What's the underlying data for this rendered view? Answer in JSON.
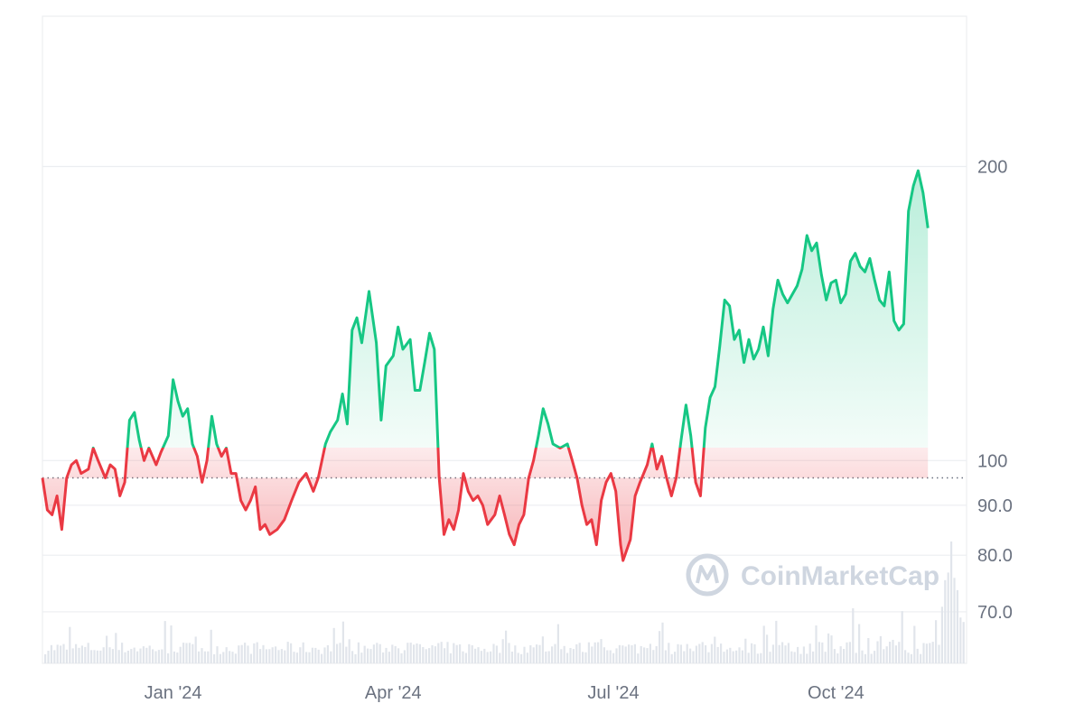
{
  "chart_data": {
    "type": "line",
    "watermark": "CoinMarketCap",
    "y_scale": "log",
    "baseline": 96,
    "ylim": [
      62,
      285
    ],
    "y_ticks": [
      {
        "value": 200,
        "label": "200"
      },
      {
        "value": 100,
        "label": "100"
      },
      {
        "value": 90,
        "label": "90.0"
      },
      {
        "value": 80,
        "label": "80.0"
      },
      {
        "value": 70,
        "label": "70.0"
      }
    ],
    "x_ticks": [
      {
        "date": "2024-01-01",
        "label": "Jan '24"
      },
      {
        "date": "2024-04-01",
        "label": "Apr '24"
      },
      {
        "date": "2024-07-01",
        "label": "Jul '24"
      },
      {
        "date": "2024-10-01",
        "label": "Oct '24"
      }
    ],
    "xlim": [
      "2023-11-08",
      "2024-11-24"
    ],
    "colors": {
      "up": "#16c784",
      "down": "#ea3943",
      "volume": "#e1e5eb",
      "grid": "#eceef1"
    },
    "series": [
      {
        "values": [
          [
            "2023-11-08",
            96
          ],
          [
            "2023-11-10",
            89
          ],
          [
            "2023-11-12",
            88
          ],
          [
            "2023-11-14",
            92
          ],
          [
            "2023-11-16",
            85
          ],
          [
            "2023-11-18",
            96
          ],
          [
            "2023-11-20",
            99
          ],
          [
            "2023-11-22",
            100
          ],
          [
            "2023-11-24",
            97
          ],
          [
            "2023-11-27",
            98
          ],
          [
            "2023-11-29",
            103
          ],
          [
            "2023-12-01",
            100
          ],
          [
            "2023-12-04",
            96
          ],
          [
            "2023-12-06",
            99
          ],
          [
            "2023-12-08",
            98
          ],
          [
            "2023-12-10",
            92
          ],
          [
            "2023-12-12",
            95
          ],
          [
            "2023-12-14",
            110
          ],
          [
            "2023-12-16",
            112
          ],
          [
            "2023-12-18",
            105
          ],
          [
            "2023-12-20",
            100
          ],
          [
            "2023-12-22",
            103
          ],
          [
            "2023-12-25",
            99
          ],
          [
            "2023-12-27",
            102
          ],
          [
            "2023-12-30",
            106
          ],
          [
            "2024-01-01",
            121
          ],
          [
            "2024-01-03",
            115
          ],
          [
            "2024-01-05",
            111
          ],
          [
            "2024-01-07",
            113
          ],
          [
            "2024-01-09",
            104
          ],
          [
            "2024-01-11",
            101
          ],
          [
            "2024-01-13",
            95
          ],
          [
            "2024-01-15",
            100
          ],
          [
            "2024-01-17",
            111
          ],
          [
            "2024-01-19",
            104
          ],
          [
            "2024-01-21",
            101
          ],
          [
            "2024-01-23",
            103
          ],
          [
            "2024-01-25",
            97
          ],
          [
            "2024-01-27",
            97
          ],
          [
            "2024-01-29",
            91
          ],
          [
            "2024-01-31",
            89
          ],
          [
            "2024-02-02",
            91
          ],
          [
            "2024-02-04",
            94
          ],
          [
            "2024-02-06",
            85
          ],
          [
            "2024-02-08",
            86
          ],
          [
            "2024-02-10",
            84
          ],
          [
            "2024-02-13",
            85
          ],
          [
            "2024-02-16",
            87
          ],
          [
            "2024-02-19",
            91
          ],
          [
            "2024-02-22",
            95
          ],
          [
            "2024-02-25",
            97
          ],
          [
            "2024-02-28",
            93
          ],
          [
            "2024-03-01",
            96
          ],
          [
            "2024-03-04",
            104
          ],
          [
            "2024-03-06",
            107
          ],
          [
            "2024-03-09",
            110
          ],
          [
            "2024-03-11",
            117
          ],
          [
            "2024-03-13",
            109
          ],
          [
            "2024-03-15",
            136
          ],
          [
            "2024-03-17",
            140
          ],
          [
            "2024-03-19",
            132
          ],
          [
            "2024-03-22",
            149
          ],
          [
            "2024-03-25",
            132
          ],
          [
            "2024-03-27",
            110
          ],
          [
            "2024-03-29",
            125
          ],
          [
            "2024-04-01",
            128
          ],
          [
            "2024-04-03",
            137
          ],
          [
            "2024-04-05",
            130
          ],
          [
            "2024-04-08",
            133
          ],
          [
            "2024-04-10",
            118
          ],
          [
            "2024-04-12",
            118
          ],
          [
            "2024-04-14",
            126
          ],
          [
            "2024-04-16",
            135
          ],
          [
            "2024-04-18",
            130
          ],
          [
            "2024-04-20",
            96
          ],
          [
            "2024-04-22",
            84
          ],
          [
            "2024-04-24",
            87
          ],
          [
            "2024-04-26",
            85
          ],
          [
            "2024-04-28",
            89
          ],
          [
            "2024-04-30",
            97
          ],
          [
            "2024-05-02",
            93
          ],
          [
            "2024-05-04",
            91
          ],
          [
            "2024-05-06",
            92
          ],
          [
            "2024-05-08",
            90
          ],
          [
            "2024-05-10",
            86
          ],
          [
            "2024-05-13",
            88
          ],
          [
            "2024-05-15",
            92
          ],
          [
            "2024-05-17",
            88
          ],
          [
            "2024-05-19",
            84
          ],
          [
            "2024-05-21",
            82
          ],
          [
            "2024-05-23",
            86
          ],
          [
            "2024-05-25",
            88
          ],
          [
            "2024-05-27",
            96
          ],
          [
            "2024-05-29",
            100
          ],
          [
            "2024-05-31",
            106
          ],
          [
            "2024-06-02",
            113
          ],
          [
            "2024-06-04",
            109
          ],
          [
            "2024-06-06",
            104
          ],
          [
            "2024-06-09",
            103
          ],
          [
            "2024-06-12",
            104
          ],
          [
            "2024-06-14",
            100
          ],
          [
            "2024-06-16",
            96
          ],
          [
            "2024-06-18",
            90
          ],
          [
            "2024-06-20",
            86
          ],
          [
            "2024-06-22",
            87
          ],
          [
            "2024-06-24",
            82
          ],
          [
            "2024-06-26",
            91
          ],
          [
            "2024-06-28",
            95
          ],
          [
            "2024-06-30",
            97
          ],
          [
            "2024-07-02",
            93
          ],
          [
            "2024-07-04",
            82
          ],
          [
            "2024-07-05",
            79
          ],
          [
            "2024-07-08",
            83
          ],
          [
            "2024-07-10",
            92
          ],
          [
            "2024-07-12",
            95
          ],
          [
            "2024-07-15",
            99
          ],
          [
            "2024-07-17",
            104
          ],
          [
            "2024-07-19",
            98
          ],
          [
            "2024-07-21",
            101
          ],
          [
            "2024-07-23",
            96
          ],
          [
            "2024-07-25",
            92
          ],
          [
            "2024-07-27",
            96
          ],
          [
            "2024-07-29",
            105
          ],
          [
            "2024-07-31",
            114
          ],
          [
            "2024-08-02",
            106
          ],
          [
            "2024-08-04",
            95
          ],
          [
            "2024-08-06",
            92
          ],
          [
            "2024-08-08",
            108
          ],
          [
            "2024-08-10",
            116
          ],
          [
            "2024-08-12",
            119
          ],
          [
            "2024-08-14",
            131
          ],
          [
            "2024-08-16",
            146
          ],
          [
            "2024-08-18",
            144
          ],
          [
            "2024-08-20",
            133
          ],
          [
            "2024-08-22",
            136
          ],
          [
            "2024-08-24",
            126
          ],
          [
            "2024-08-26",
            133
          ],
          [
            "2024-08-28",
            127
          ],
          [
            "2024-08-30",
            130
          ],
          [
            "2024-09-01",
            137
          ],
          [
            "2024-09-03",
            128
          ],
          [
            "2024-09-05",
            143
          ],
          [
            "2024-09-07",
            153
          ],
          [
            "2024-09-09",
            148
          ],
          [
            "2024-09-11",
            145
          ],
          [
            "2024-09-13",
            148
          ],
          [
            "2024-09-15",
            151
          ],
          [
            "2024-09-17",
            157
          ],
          [
            "2024-09-19",
            170
          ],
          [
            "2024-09-21",
            164
          ],
          [
            "2024-09-23",
            167
          ],
          [
            "2024-09-25",
            155
          ],
          [
            "2024-09-27",
            146
          ],
          [
            "2024-09-29",
            152
          ],
          [
            "2024-10-01",
            153
          ],
          [
            "2024-10-03",
            145
          ],
          [
            "2024-10-05",
            148
          ],
          [
            "2024-10-07",
            160
          ],
          [
            "2024-10-09",
            163
          ],
          [
            "2024-10-11",
            158
          ],
          [
            "2024-10-13",
            156
          ],
          [
            "2024-10-15",
            161
          ],
          [
            "2024-10-17",
            153
          ],
          [
            "2024-10-19",
            146
          ],
          [
            "2024-10-21",
            144
          ],
          [
            "2024-10-23",
            156
          ],
          [
            "2024-10-25",
            139
          ],
          [
            "2024-10-27",
            136
          ],
          [
            "2024-10-29",
            138
          ],
          [
            "2024-10-31",
            180
          ],
          [
            "2024-11-02",
            191
          ],
          [
            "2024-11-04",
            198
          ],
          [
            "2024-11-06",
            188
          ],
          [
            "2024-11-08",
            173
          ]
        ]
      }
    ]
  }
}
